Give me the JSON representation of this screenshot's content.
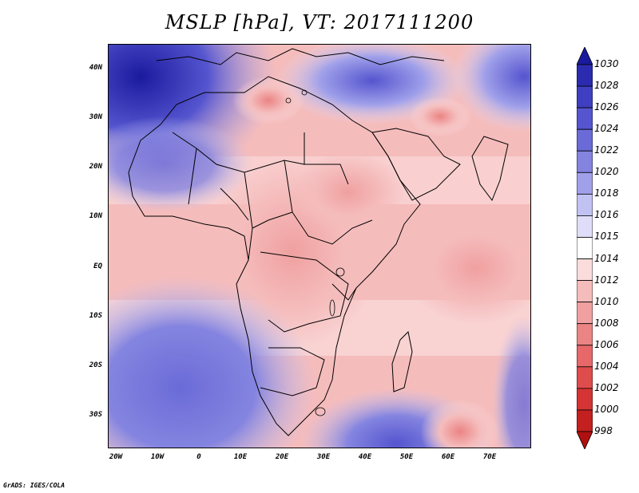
{
  "title": "MSLP [hPa], VT: 2017111200",
  "credit": "GrADS: IGES/COLA",
  "map": {
    "lat_labels": [
      "40N",
      "30N",
      "20N",
      "10N",
      "EQ",
      "10S",
      "20S",
      "30S"
    ],
    "lon_labels": [
      "20W",
      "10W",
      "0",
      "10E",
      "20E",
      "30E",
      "40E",
      "50E",
      "60E",
      "70E"
    ]
  },
  "colorbar": {
    "levels": [
      "1030",
      "1028",
      "1026",
      "1024",
      "1022",
      "1020",
      "1018",
      "1016",
      "1015",
      "1014",
      "1012",
      "1010",
      "1008",
      "1006",
      "1004",
      "1002",
      "1000",
      "998"
    ],
    "colors": [
      "#1a1a9e",
      "#2b2bb0",
      "#3f3fc2",
      "#5555cf",
      "#6b6bd8",
      "#8484e0",
      "#a0a0ea",
      "#c2c2f2",
      "#dedef8",
      "#ffffff",
      "#fbdcdc",
      "#f5bcbc",
      "#f0a0a0",
      "#eb8484",
      "#e66868",
      "#df4c4c",
      "#d43434",
      "#c42020",
      "#b01010"
    ]
  }
}
